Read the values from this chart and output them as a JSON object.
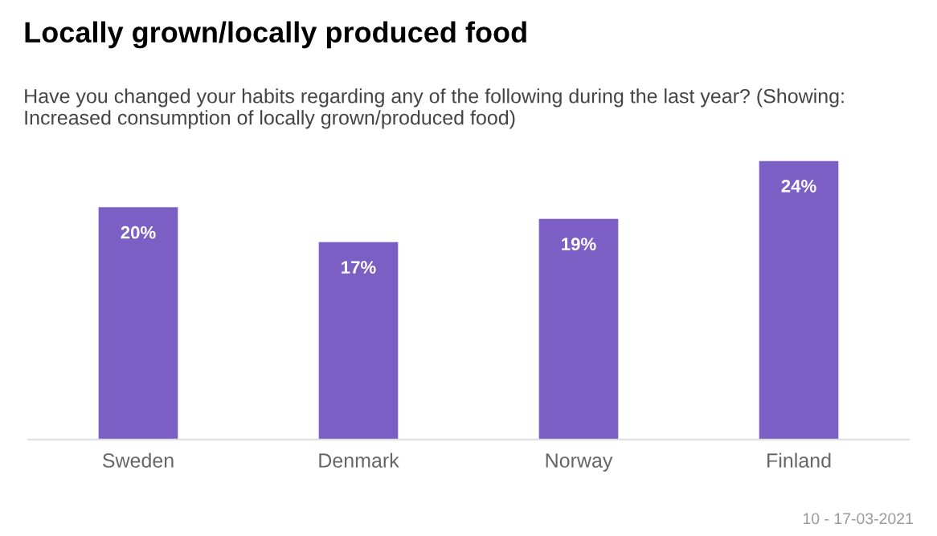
{
  "chart_data": {
    "type": "bar",
    "title": "Locally grown/locally produced food",
    "subtitle": "Have you changed your habits regarding any of the following during the last year? (Showing: Increased consumption of locally grown/produced food)",
    "categories": [
      "Sweden",
      "Denmark",
      "Norway",
      "Finland"
    ],
    "values": [
      20,
      17,
      19,
      24
    ],
    "value_labels": [
      "20%",
      "17%",
      "19%",
      "24%"
    ],
    "color": "#7b5fc5",
    "annotations": [
      "10 - 17-03-2021"
    ],
    "grid": false,
    "legend": false
  }
}
